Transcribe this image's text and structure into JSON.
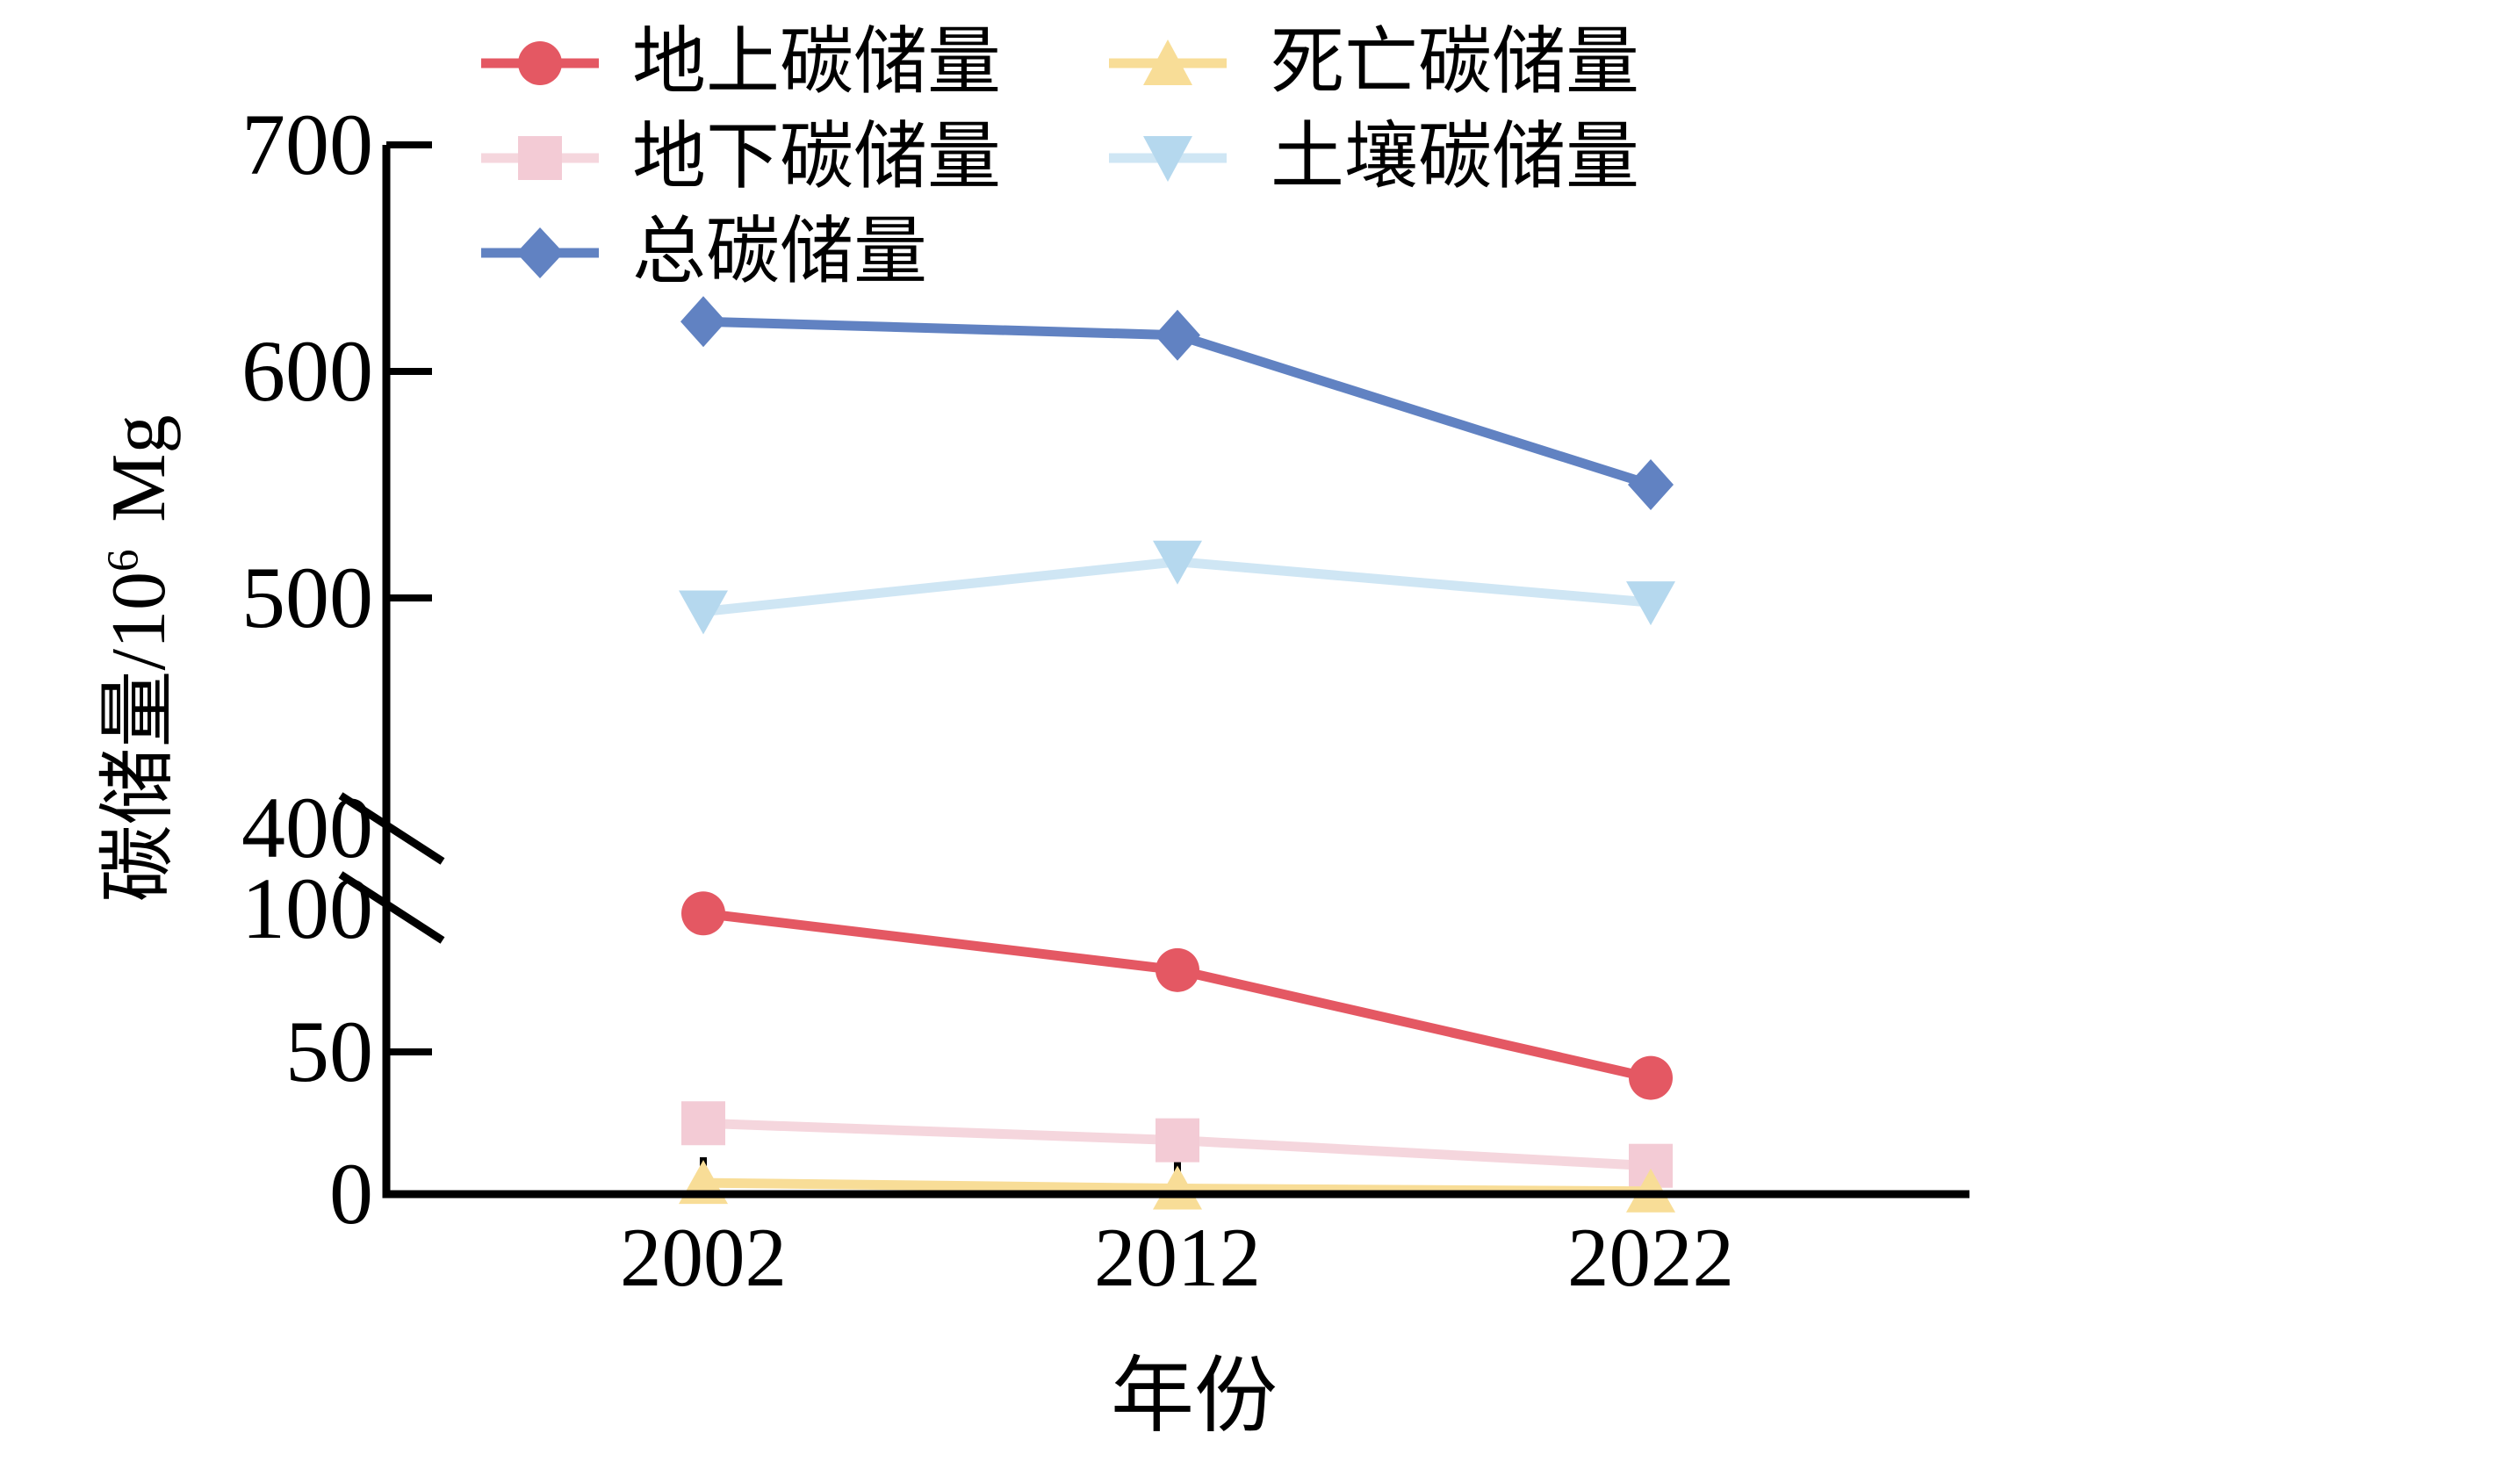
{
  "figure": {
    "background": "#ffffff",
    "x_axis_title": "年份",
    "y_axis_title_prefix": "碳储量/10",
    "y_axis_title_sup": "6",
    "y_axis_title_unit": "Mg"
  },
  "axes": {
    "y_upper_ticks": [
      {
        "label": "700",
        "value": 700
      },
      {
        "label": "600",
        "value": 600
      },
      {
        "label": "500",
        "value": 500
      },
      {
        "label": "400",
        "value": 400
      }
    ],
    "y_lower_ticks": [
      {
        "label": "100",
        "value": 100
      },
      {
        "label": "50",
        "value": 50
      },
      {
        "label": "0",
        "value": 0
      }
    ],
    "x_ticks": [
      {
        "label": "2002"
      },
      {
        "label": "2012"
      },
      {
        "label": "2022"
      }
    ],
    "axis_color": "#000000"
  },
  "legend": {
    "items": [
      {
        "label": "地上碳储量"
      },
      {
        "label": "地下碳储量"
      },
      {
        "label": "总碳储量"
      },
      {
        "label": "死亡碳储量"
      },
      {
        "label": "土壤碳储量"
      }
    ]
  },
  "chart_data": {
    "type": "line",
    "title": "",
    "xlabel": "年份",
    "ylabel": "碳储量/10^6 Mg",
    "categories": [
      "2002",
      "2012",
      "2022"
    ],
    "y_axis_broken": true,
    "y_break_between": [
      100,
      400
    ],
    "y_upper_range": [
      400,
      700
    ],
    "y_lower_range": [
      0,
      100
    ],
    "grid": false,
    "legend_position": "top",
    "series": [
      {
        "key": "aboveground",
        "name": "地上碳储量",
        "marker": "circle",
        "line_color": "#e45863",
        "marker_color": "#e45863",
        "values": [
          99,
          79,
          41
        ]
      },
      {
        "key": "belowground",
        "name": "地下碳储量",
        "marker": "square",
        "line_color": "#f5d6dd",
        "marker_color": "#f3cbd5",
        "values": [
          25,
          19,
          10
        ]
      },
      {
        "key": "total",
        "name": "总碳储量",
        "marker": "diamond",
        "line_color": "#6182c2",
        "marker_color": "#6182c2",
        "values": [
          622,
          616,
          550
        ]
      },
      {
        "key": "dead",
        "name": "死亡碳储量",
        "marker": "triangle-up",
        "line_color": "#f8dd97",
        "marker_color": "#f8dd97",
        "values": [
          4,
          2,
          1
        ]
      },
      {
        "key": "soil",
        "name": "土壤碳储量",
        "marker": "triangle-down",
        "line_color": "#cfe6f4",
        "marker_color": "#b5d8ee",
        "values": [
          494,
          516,
          498
        ]
      }
    ]
  }
}
